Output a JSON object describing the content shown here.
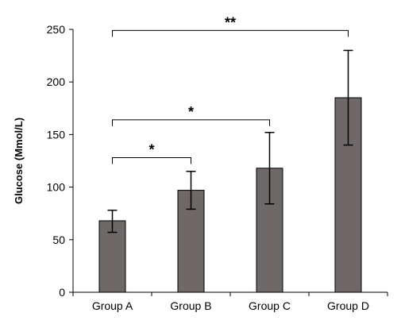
{
  "chart_data": {
    "type": "bar",
    "title": "",
    "xlabel": "",
    "ylabel": "Glucose (Mmol/L)",
    "categories": [
      "Group A",
      "Group B",
      "Group C",
      "Group D"
    ],
    "values": [
      68,
      97,
      118,
      185
    ],
    "error_low": [
      57,
      79,
      84,
      140
    ],
    "error_high": [
      78,
      115,
      152,
      230
    ],
    "ylim": [
      0,
      250
    ],
    "yticks": [
      0,
      50,
      100,
      150,
      200,
      250
    ],
    "grid": false,
    "bar_color": "#6e6868",
    "significance": [
      {
        "from": "Group A",
        "to": "Group B",
        "label": "*",
        "level": 128
      },
      {
        "from": "Group A",
        "to": "Group C",
        "label": "*",
        "level": 164
      },
      {
        "from": "Group A",
        "to": "Group D",
        "label": "**",
        "level": 249
      }
    ]
  }
}
